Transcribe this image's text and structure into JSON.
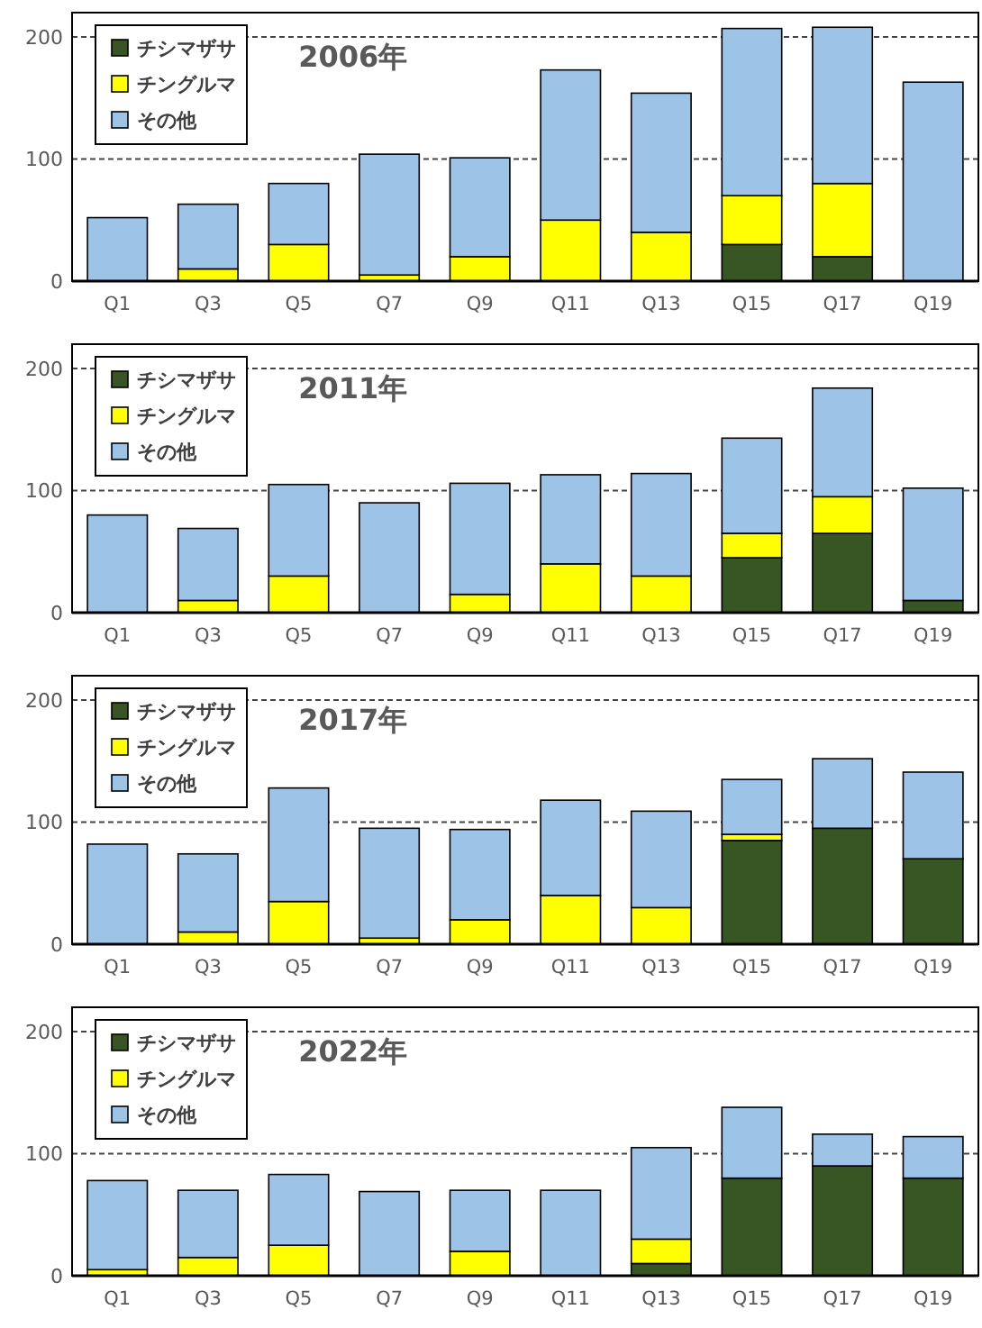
{
  "chart_data": [
    {
      "type": "bar",
      "title": "2006年",
      "stacked": true,
      "categories": [
        "Q1",
        "Q3",
        "Q5",
        "Q7",
        "Q9",
        "Q11",
        "Q13",
        "Q15",
        "Q17",
        "Q19"
      ],
      "ylim": [
        0,
        220
      ],
      "yticks": [
        0,
        100,
        200
      ],
      "grid": "y",
      "legend": "top left",
      "series": [
        {
          "name": "チシマザサ",
          "color": "#375623",
          "values": [
            0,
            0,
            0,
            0,
            0,
            0,
            0,
            30,
            20,
            0
          ]
        },
        {
          "name": "チングルマ",
          "color": "#ffff00",
          "values": [
            0,
            10,
            30,
            5,
            20,
            50,
            40,
            40,
            60,
            0
          ]
        },
        {
          "name": "その他",
          "color": "#9dc3e6",
          "values": [
            52,
            53,
            50,
            99,
            81,
            123,
            114,
            137,
            128,
            163
          ]
        }
      ]
    },
    {
      "type": "bar",
      "title": "2011年",
      "stacked": true,
      "categories": [
        "Q1",
        "Q3",
        "Q5",
        "Q7",
        "Q9",
        "Q11",
        "Q13",
        "Q15",
        "Q17",
        "Q19"
      ],
      "ylim": [
        0,
        220
      ],
      "yticks": [
        0,
        100,
        200
      ],
      "grid": "y",
      "legend": "top left",
      "series": [
        {
          "name": "チシマザサ",
          "color": "#375623",
          "values": [
            0,
            0,
            0,
            null,
            0,
            0,
            0,
            45,
            65,
            10
          ]
        },
        {
          "name": "チングルマ",
          "color": "#ffff00",
          "values": [
            0,
            10,
            30,
            0,
            15,
            40,
            30,
            20,
            30,
            0
          ]
        },
        {
          "name": "その他",
          "color": "#9dc3e6",
          "values": [
            80,
            59,
            75,
            90,
            91,
            73,
            84,
            78,
            89,
            92
          ]
        }
      ]
    },
    {
      "type": "bar",
      "title": "2017年",
      "stacked": true,
      "categories": [
        "Q1",
        "Q3",
        "Q5",
        "Q7",
        "Q9",
        "Q11",
        "Q13",
        "Q15",
        "Q17",
        "Q19"
      ],
      "ylim": [
        0,
        220
      ],
      "yticks": [
        0,
        100,
        200
      ],
      "grid": "y",
      "legend": "top left",
      "series": [
        {
          "name": "チシマザサ",
          "color": "#375623",
          "values": [
            0,
            0,
            0,
            0,
            0,
            0,
            null,
            85,
            95,
            70
          ]
        },
        {
          "name": "チングルマ",
          "color": "#ffff00",
          "values": [
            0,
            10,
            35,
            5,
            20,
            40,
            30,
            5,
            0,
            0
          ]
        },
        {
          "name": "その他",
          "color": "#9dc3e6",
          "values": [
            82,
            64,
            93,
            90,
            74,
            78,
            79,
            45,
            57,
            71
          ]
        }
      ]
    },
    {
      "type": "bar",
      "title": "2022年",
      "stacked": true,
      "categories": [
        "Q1",
        "Q3",
        "Q5",
        "Q7",
        "Q9",
        "Q11",
        "Q13",
        "Q15",
        "Q17",
        "Q19"
      ],
      "ylim": [
        0,
        220
      ],
      "yticks": [
        0,
        100,
        200
      ],
      "grid": "y",
      "legend": "top left",
      "series": [
        {
          "name": "チシマザサ",
          "color": "#375623",
          "values": [
            0,
            0,
            0,
            0,
            0,
            0,
            10,
            80,
            90,
            80
          ]
        },
        {
          "name": "チングルマ",
          "color": "#ffff00",
          "values": [
            5,
            15,
            25,
            0,
            20,
            0,
            20,
            0,
            0,
            0
          ]
        },
        {
          "name": "その他",
          "color": "#9dc3e6",
          "values": [
            73,
            55,
            58,
            69,
            50,
            70,
            75,
            58,
            26,
            34
          ]
        }
      ]
    }
  ]
}
